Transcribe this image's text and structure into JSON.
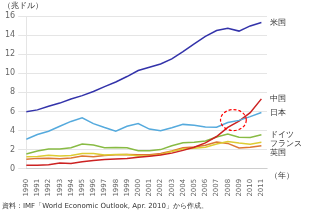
{
  "chart_data": {
    "type": "line",
    "xlabel": "（年）",
    "ylabel": "（兆ドル）",
    "source": "資料：IMF「World Economic Outlook, Apr. 2010」から作成。",
    "x": [
      1990,
      1991,
      1992,
      1993,
      1994,
      1995,
      1996,
      1997,
      1998,
      1999,
      2000,
      2001,
      2002,
      2003,
      2004,
      2005,
      2006,
      2007,
      2008,
      2009,
      2010,
      2011
    ],
    "series": [
      {
        "name": "米国",
        "color": "#3333aa",
        "values": [
          5.98,
          6.17,
          6.54,
          6.88,
          7.31,
          7.66,
          8.1,
          8.61,
          9.09,
          9.66,
          10.29,
          10.63,
          10.98,
          11.51,
          12.27,
          13.09,
          13.86,
          14.48,
          14.72,
          14.42,
          14.96,
          15.32
        ]
      },
      {
        "name": "日本",
        "color": "#55aadd",
        "values": [
          3.1,
          3.59,
          3.93,
          4.45,
          4.96,
          5.33,
          4.73,
          4.32,
          3.94,
          4.45,
          4.73,
          4.16,
          3.99,
          4.3,
          4.65,
          4.57,
          4.37,
          4.36,
          4.85,
          5.07,
          5.46,
          5.9
        ]
      },
      {
        "name": "中国",
        "color": "#cc2222",
        "values": [
          0.36,
          0.38,
          0.43,
          0.61,
          0.56,
          0.73,
          0.86,
          0.96,
          1.02,
          1.08,
          1.2,
          1.32,
          1.45,
          1.64,
          1.93,
          2.26,
          2.71,
          3.38,
          4.33,
          4.99,
          5.88,
          7.32
        ]
      },
      {
        "name": "ドイツ",
        "color": "#88bb44",
        "values": [
          1.55,
          1.87,
          2.08,
          2.07,
          2.21,
          2.59,
          2.5,
          2.21,
          2.24,
          2.2,
          1.89,
          1.89,
          2.01,
          2.42,
          2.73,
          2.78,
          2.91,
          3.33,
          3.63,
          3.3,
          3.28,
          3.57
        ]
      },
      {
        "name": "フランス",
        "color": "#ddcc33",
        "values": [
          1.27,
          1.28,
          1.41,
          1.33,
          1.39,
          1.61,
          1.59,
          1.44,
          1.5,
          1.49,
          1.33,
          1.36,
          1.49,
          1.81,
          2.06,
          2.14,
          2.26,
          2.59,
          2.85,
          2.7,
          2.58,
          2.77
        ]
      },
      {
        "name": "英国",
        "color": "#dd7733",
        "values": [
          1.0,
          1.09,
          1.1,
          1.06,
          1.13,
          1.33,
          1.27,
          1.39,
          1.47,
          1.5,
          1.48,
          1.47,
          1.59,
          1.86,
          2.2,
          2.28,
          2.46,
          2.81,
          2.66,
          2.17,
          2.25,
          2.42
        ]
      }
    ],
    "xlim": [
      1990,
      2011.5
    ],
    "xticks": [
      1990,
      1991,
      1992,
      1993,
      1994,
      1995,
      1996,
      1997,
      1998,
      1999,
      2000,
      2001,
      2002,
      2003,
      2004,
      2005,
      2006,
      2007,
      2008,
      2009,
      2010,
      2011
    ],
    "ylim": [
      0,
      16
    ],
    "yticks": [
      0,
      2,
      4,
      6,
      8,
      10,
      12,
      14,
      16
    ],
    "grid": "y",
    "ellipse": {
      "x": 2008.5,
      "y": 5.1,
      "width": 2.3,
      "height": 2.2,
      "color": "red",
      "line_style": "dashed"
    }
  }
}
